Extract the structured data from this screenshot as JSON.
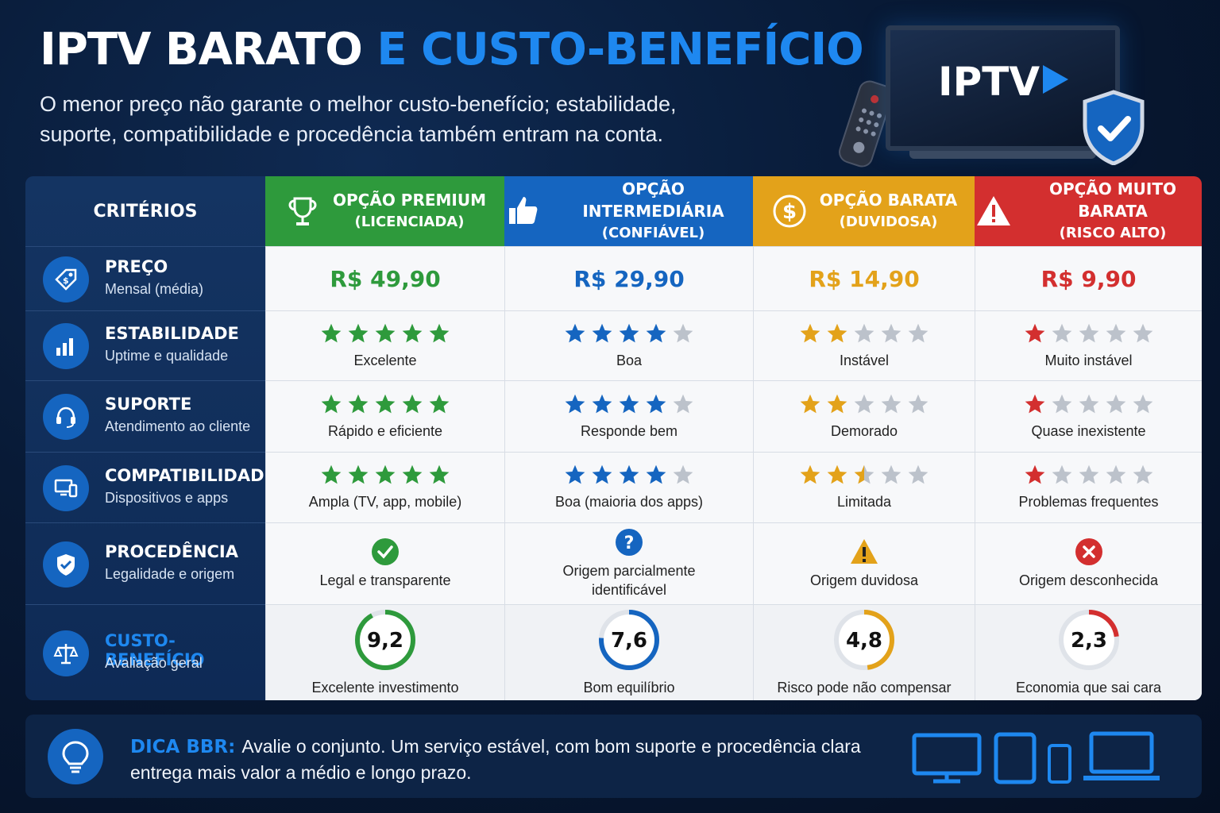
{
  "header": {
    "title_a": "IPTV BARATO ",
    "title_b": "E CUSTO-BENEFÍCIO",
    "subtitle": "O menor preço não garante o melhor custo-benefício; estabilidade, suporte, compatibilidade e procedência também entram na conta."
  },
  "tv": {
    "label": "IPTV"
  },
  "criteria_header": "CRITÉRIOS",
  "criteria": [
    {
      "title": "PREÇO",
      "sub": "Mensal (média)",
      "icon": "price-tag-icon"
    },
    {
      "title": "ESTABILIDADE",
      "sub": "Uptime e qualidade",
      "icon": "bar-chart-icon"
    },
    {
      "title": "SUPORTE",
      "sub": "Atendimento ao cliente",
      "icon": "headset-icon"
    },
    {
      "title": "COMPATIBILIDADE",
      "sub": "Dispositivos e apps",
      "icon": "devices-icon"
    },
    {
      "title": "PROCEDÊNCIA",
      "sub": "Legalidade e origem",
      "icon": "shield-check-icon"
    },
    {
      "title": "CUSTO-BENEFÍCIO",
      "sub": "Avaliação geral",
      "icon": "scales-icon"
    }
  ],
  "options": [
    {
      "name": "OPÇÃO PREMIUM",
      "sub": "(LICENCIADA)",
      "color": "#2e9a3c",
      "icon": "trophy-icon",
      "price": "R$ 49,90",
      "stability": {
        "stars": 5,
        "label": "Excelente"
      },
      "support": {
        "stars": 5,
        "label": "Rápido e eficiente"
      },
      "compat": {
        "stars": 5,
        "label": "Ampla (TV, app, mobile)"
      },
      "origin": {
        "status": "check",
        "label": "Legal e transparente"
      },
      "score": {
        "value": "9,2",
        "num": 9.2,
        "label": "Excelente investimento"
      }
    },
    {
      "name": "OPÇÃO INTERMEDIÁRIA",
      "sub": "(CONFIÁVEL)",
      "color": "#1565c0",
      "icon": "thumbs-up-icon",
      "price": "R$ 29,90",
      "stability": {
        "stars": 4,
        "label": "Boa"
      },
      "support": {
        "stars": 4,
        "label": "Responde bem"
      },
      "compat": {
        "stars": 4,
        "label": "Boa (maioria dos apps)"
      },
      "origin": {
        "status": "question",
        "label": "Origem parcialmente identificável"
      },
      "score": {
        "value": "7,6",
        "num": 7.6,
        "label": "Bom equilíbrio"
      }
    },
    {
      "name": "OPÇÃO BARATA",
      "sub": "(DUVIDOSA)",
      "color": "#e3a21a",
      "icon": "dollar-coin-icon",
      "price": "R$ 14,90",
      "stability": {
        "stars": 2,
        "label": "Instável"
      },
      "support": {
        "stars": 2,
        "label": "Demorado"
      },
      "compat": {
        "stars": 2.5,
        "label": "Limitada"
      },
      "origin": {
        "status": "warning",
        "label": "Origem duvidosa"
      },
      "score": {
        "value": "4,8",
        "num": 4.8,
        "label": "Risco pode não compensar"
      }
    },
    {
      "name": "OPÇÃO MUITO BARATA",
      "sub": "(RISCO ALTO)",
      "color": "#d32f2f",
      "icon": "warning-triangle-icon",
      "price": "R$ 9,90",
      "stability": {
        "stars": 1,
        "label": "Muito instável"
      },
      "support": {
        "stars": 1,
        "label": "Quase inexistente"
      },
      "compat": {
        "stars": 1,
        "label": "Problemas frequentes"
      },
      "origin": {
        "status": "cross",
        "label": "Origem desconhecida"
      },
      "score": {
        "value": "2,3",
        "num": 2.3,
        "label": "Economia que sai cara"
      }
    }
  ],
  "tip": {
    "label": "DICA BBR:",
    "text": "Avalie o conjunto. Um serviço estável, com bom suporte e procedência clara entrega mais valor a médio e longo prazo."
  },
  "colors": {
    "gray_star": "#bcc2cb",
    "accent": "#1e88f0"
  }
}
